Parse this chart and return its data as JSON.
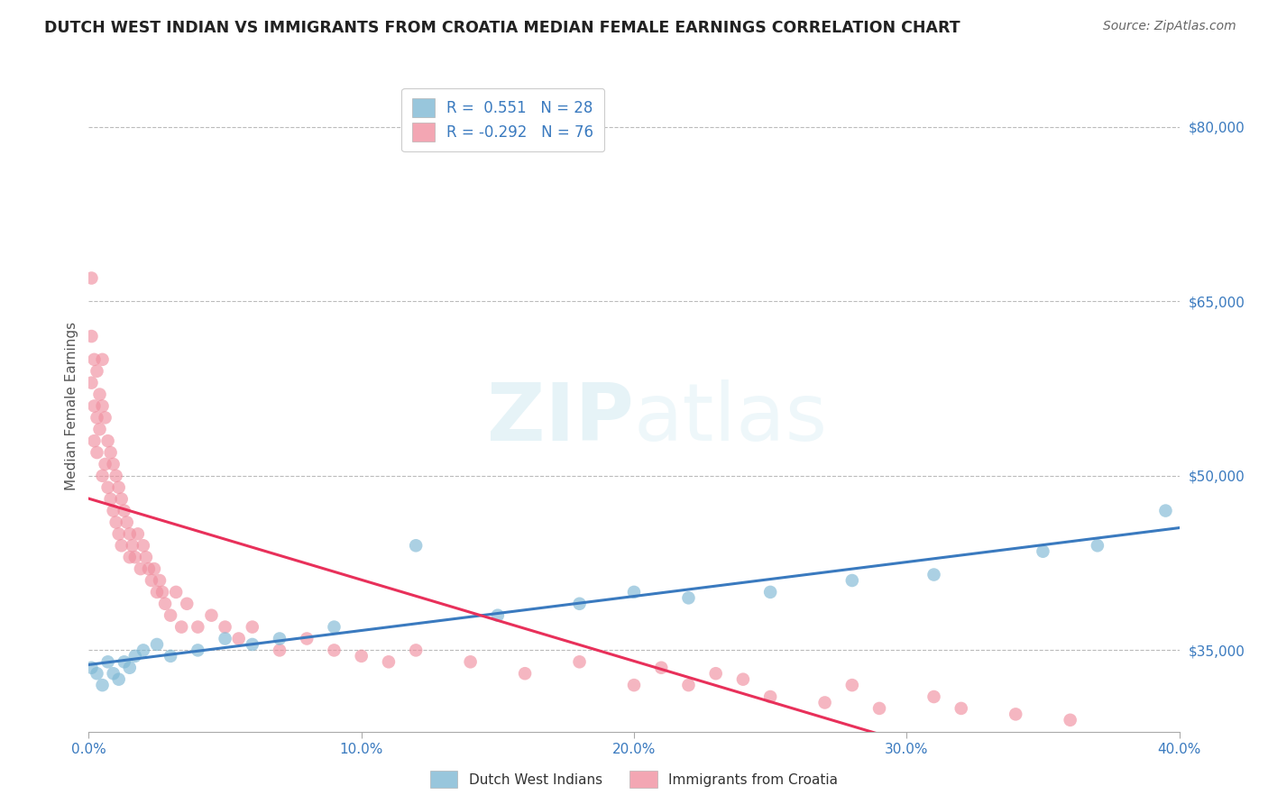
{
  "title": "DUTCH WEST INDIAN VS IMMIGRANTS FROM CROATIA MEDIAN FEMALE EARNINGS CORRELATION CHART",
  "source": "Source: ZipAtlas.com",
  "ylabel_label": "Median Female Earnings",
  "xlim": [
    0.0,
    0.4
  ],
  "ylim": [
    28000,
    84000
  ],
  "xticks": [
    0.0,
    0.1,
    0.2,
    0.3,
    0.4
  ],
  "xtick_labels": [
    "0.0%",
    "10.0%",
    "20.0%",
    "30.0%",
    "40.0%"
  ],
  "yticks": [
    35000,
    50000,
    65000,
    80000
  ],
  "ytick_labels": [
    "$35,000",
    "$50,000",
    "$65,000",
    "$80,000"
  ],
  "blue_color": "#7eb8d4",
  "pink_color": "#f090a0",
  "blue_line_color": "#3a7abf",
  "pink_line_color": "#e8305a",
  "legend_blue_label": "Dutch West Indians",
  "legend_pink_label": "Immigrants from Croatia",
  "R_blue": 0.551,
  "N_blue": 28,
  "R_pink": -0.292,
  "N_pink": 76,
  "watermark_zip": "ZIP",
  "watermark_atlas": "atlas",
  "background_color": "#ffffff",
  "grid_color": "#bbbbbb",
  "title_color": "#222222",
  "source_color": "#666666",
  "tick_color": "#3a7abf",
  "ylabel_color": "#555555",
  "blue_scatter_x": [
    0.001,
    0.003,
    0.005,
    0.007,
    0.009,
    0.011,
    0.013,
    0.015,
    0.017,
    0.02,
    0.025,
    0.03,
    0.04,
    0.05,
    0.06,
    0.07,
    0.09,
    0.12,
    0.15,
    0.18,
    0.2,
    0.22,
    0.25,
    0.28,
    0.31,
    0.35,
    0.37,
    0.395
  ],
  "blue_scatter_y": [
    33500,
    33000,
    32000,
    34000,
    33000,
    32500,
    34000,
    33500,
    34500,
    35000,
    35500,
    34500,
    35000,
    36000,
    35500,
    36000,
    37000,
    44000,
    38000,
    39000,
    40000,
    39500,
    40000,
    41000,
    41500,
    43500,
    44000,
    47000
  ],
  "pink_scatter_x": [
    0.001,
    0.001,
    0.001,
    0.002,
    0.002,
    0.002,
    0.003,
    0.003,
    0.003,
    0.004,
    0.004,
    0.005,
    0.005,
    0.005,
    0.006,
    0.006,
    0.007,
    0.007,
    0.008,
    0.008,
    0.009,
    0.009,
    0.01,
    0.01,
    0.011,
    0.011,
    0.012,
    0.012,
    0.013,
    0.014,
    0.015,
    0.015,
    0.016,
    0.017,
    0.018,
    0.019,
    0.02,
    0.021,
    0.022,
    0.023,
    0.024,
    0.025,
    0.026,
    0.027,
    0.028,
    0.03,
    0.032,
    0.034,
    0.036,
    0.04,
    0.045,
    0.05,
    0.055,
    0.06,
    0.07,
    0.08,
    0.09,
    0.1,
    0.11,
    0.12,
    0.14,
    0.16,
    0.18,
    0.2,
    0.21,
    0.22,
    0.23,
    0.24,
    0.25,
    0.27,
    0.28,
    0.29,
    0.31,
    0.32,
    0.34,
    0.36
  ],
  "pink_scatter_y": [
    67000,
    62000,
    58000,
    60000,
    56000,
    53000,
    59000,
    55000,
    52000,
    57000,
    54000,
    60000,
    56000,
    50000,
    55000,
    51000,
    53000,
    49000,
    52000,
    48000,
    51000,
    47000,
    50000,
    46000,
    49000,
    45000,
    48000,
    44000,
    47000,
    46000,
    45000,
    43000,
    44000,
    43000,
    45000,
    42000,
    44000,
    43000,
    42000,
    41000,
    42000,
    40000,
    41000,
    40000,
    39000,
    38000,
    40000,
    37000,
    39000,
    37000,
    38000,
    37000,
    36000,
    37000,
    35000,
    36000,
    35000,
    34500,
    34000,
    35000,
    34000,
    33000,
    34000,
    32000,
    33500,
    32000,
    33000,
    32500,
    31000,
    30500,
    32000,
    30000,
    31000,
    30000,
    29500,
    29000
  ]
}
